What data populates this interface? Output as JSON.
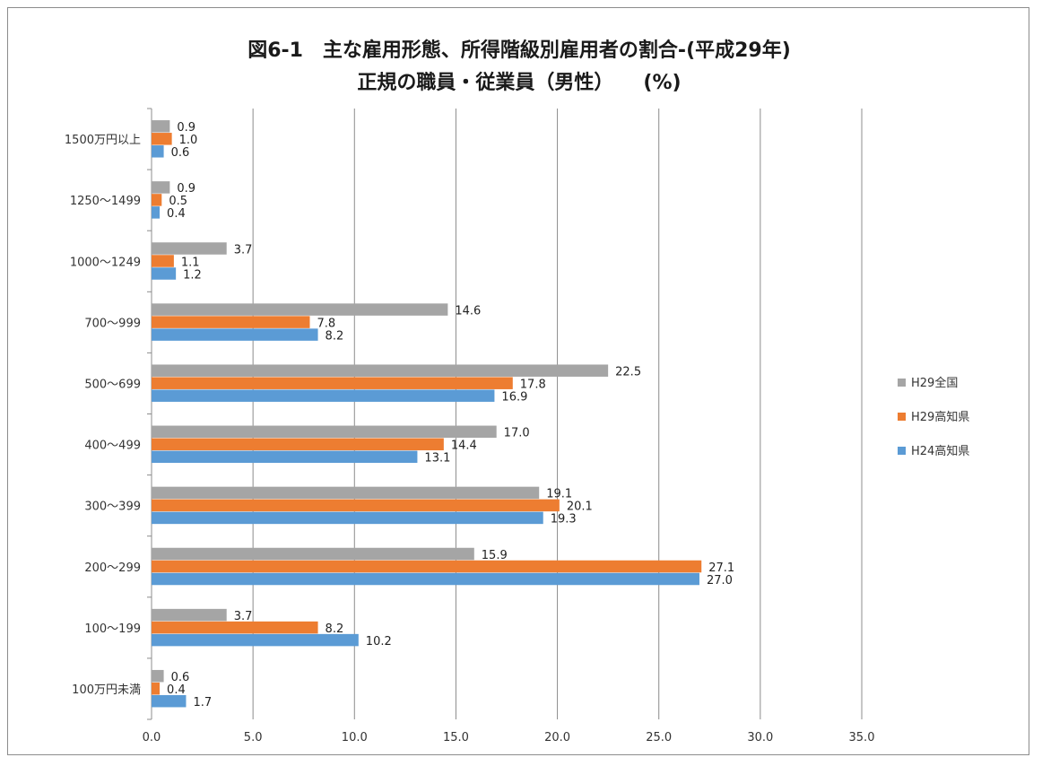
{
  "title_line1": "図6-1　主な雇用形態、所得階級別雇用者の割合-(平成29年)",
  "title_line2": "正規の職員・従業員（男性）　　(%)",
  "chart_data": {
    "type": "bar",
    "orientation": "horizontal",
    "categories": [
      "1500万円以上",
      "1250～1499",
      "1000～1249",
      "700～999",
      "500～699",
      "400～499",
      "300～399",
      "200～299",
      "100～199",
      "100万円未満"
    ],
    "series": [
      {
        "name": "H29全国",
        "color": "#a5a5a5",
        "values": [
          0.9,
          0.9,
          3.7,
          14.6,
          22.5,
          17.0,
          19.1,
          15.9,
          3.7,
          0.6
        ]
      },
      {
        "name": "H29高知県",
        "color": "#ed7d31",
        "values": [
          1.0,
          0.5,
          1.1,
          7.8,
          17.8,
          14.4,
          20.1,
          27.1,
          8.2,
          0.4
        ]
      },
      {
        "name": "H24高知県",
        "color": "#5b9bd5",
        "values": [
          0.6,
          0.4,
          1.2,
          8.2,
          16.9,
          13.1,
          19.3,
          27.0,
          10.2,
          1.7
        ]
      }
    ],
    "xlim": [
      0,
      35
    ],
    "xticks": [
      "0.0",
      "5.0",
      "10.0",
      "15.0",
      "20.0",
      "25.0",
      "30.0",
      "35.0"
    ],
    "grid": true,
    "legend_position": "right"
  }
}
